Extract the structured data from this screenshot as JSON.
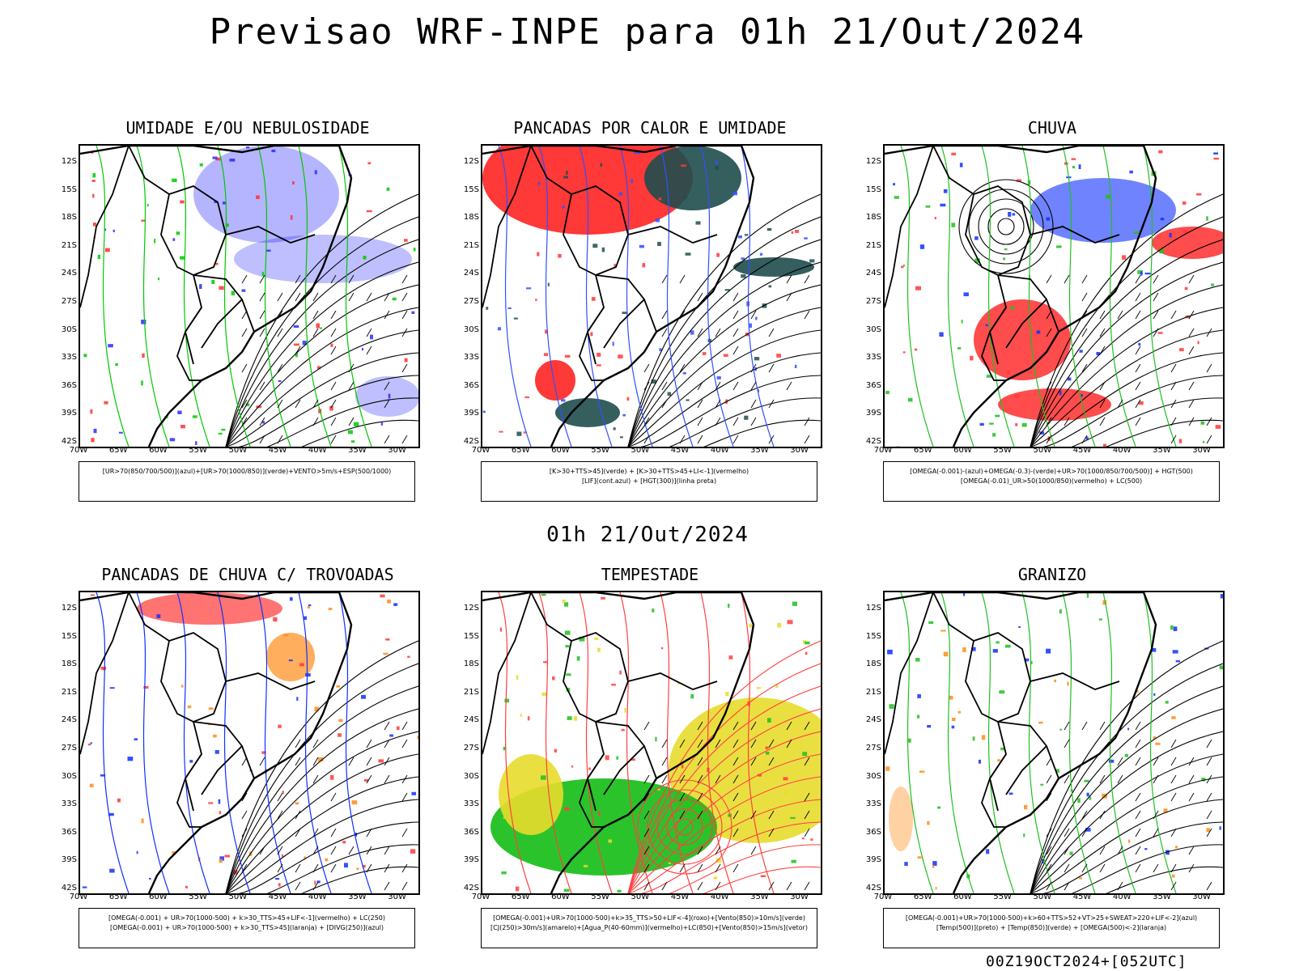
{
  "title": "Previsao WRF-INPE  para 01h 21/Out/2024",
  "mid_time": "01h 21/Out/2024",
  "footer": "00Z19OCT2024+[052UTC]",
  "lat_labels": [
    "12S",
    "15S",
    "18S",
    "21S",
    "24S",
    "27S",
    "30S",
    "33S",
    "36S",
    "39S",
    "42S"
  ],
  "lon_labels": [
    "70W",
    "65W",
    "60W",
    "55W",
    "50W",
    "45W",
    "40W",
    "35W",
    "30W"
  ],
  "panels": [
    {
      "title": "UMIDADE E/OU NEBULOSIDADE",
      "legend": [
        "[UR>70(850/700/500)](azul)+[UR>70(1000/850)](verde)+VENTO>5m/s+ESP(500/1000)"
      ],
      "colors": [
        "#2b2bff",
        "#00c800",
        "#ff3030"
      ]
    },
    {
      "title": "PANCADAS POR CALOR E UMIDADE",
      "legend": [
        "[K>30+TTS>45](verde) + [K>30+TTS>45+LI<-1](vermelho)",
        "[LIF](cont.azul) + [HGT(300)](linha preta)"
      ],
      "colors": [
        "#ff3838",
        "#1f4d4d",
        "#3050ff"
      ]
    },
    {
      "title": "CHUVA",
      "legend": [
        "[OMEGA(-0.001)-(azul)+OMEGA(-0.3)-(verde)+UR>70(1000/850/700/500)] + HGT(500)",
        "[OMEGA(-0.01)_UR>50(1000/850)(vermelho) + LC(500)"
      ],
      "colors": [
        "#ff3838",
        "#1030ff",
        "#20c020"
      ]
    },
    {
      "title": "PANCADAS DE CHUVA C/ TROVOADAS",
      "legend": [
        "[OMEGA(-0.001) + UR>70(1000-500) + k>30_TTS>45+LIF<-1](vermelho) + LC(250)",
        "[OMEGA(-0.001) + UR>70(1000-500) + k>30_TTS>45](laranja) + [DIVG(250)](azul)"
      ],
      "colors": [
        "#ff3838",
        "#ff8c1a",
        "#1030ff"
      ]
    },
    {
      "title": "TEMPESTADE",
      "legend": [
        "[OMEGA(-0.001)+UR>70(1000-500)+k>35_TTS>50+LIF<-4](roxo)+[Vento(850)>10m/s](verde)",
        "[CJ(250)>30m/s](amarelo)+[Agua_P(40-60mm)](vermelho)+LC(850)+[Vento(850)>15m/s](vetor)"
      ],
      "colors": [
        "#e8dc2c",
        "#20c020",
        "#ff4040"
      ]
    },
    {
      "title": "GRANIZO",
      "legend": [
        "[OMEGA(-0.001)+UR>70(1000-500)+k>60+TTS>52+VT>25+SWEAT>220+LIF<-2](azul)",
        "[Temp(500)](preto) + [Temp(850)](verde) + [OMEGA(500)<-2](laranja)"
      ],
      "colors": [
        "#20c020",
        "#ff8c1a",
        "#1030ff"
      ]
    }
  ]
}
